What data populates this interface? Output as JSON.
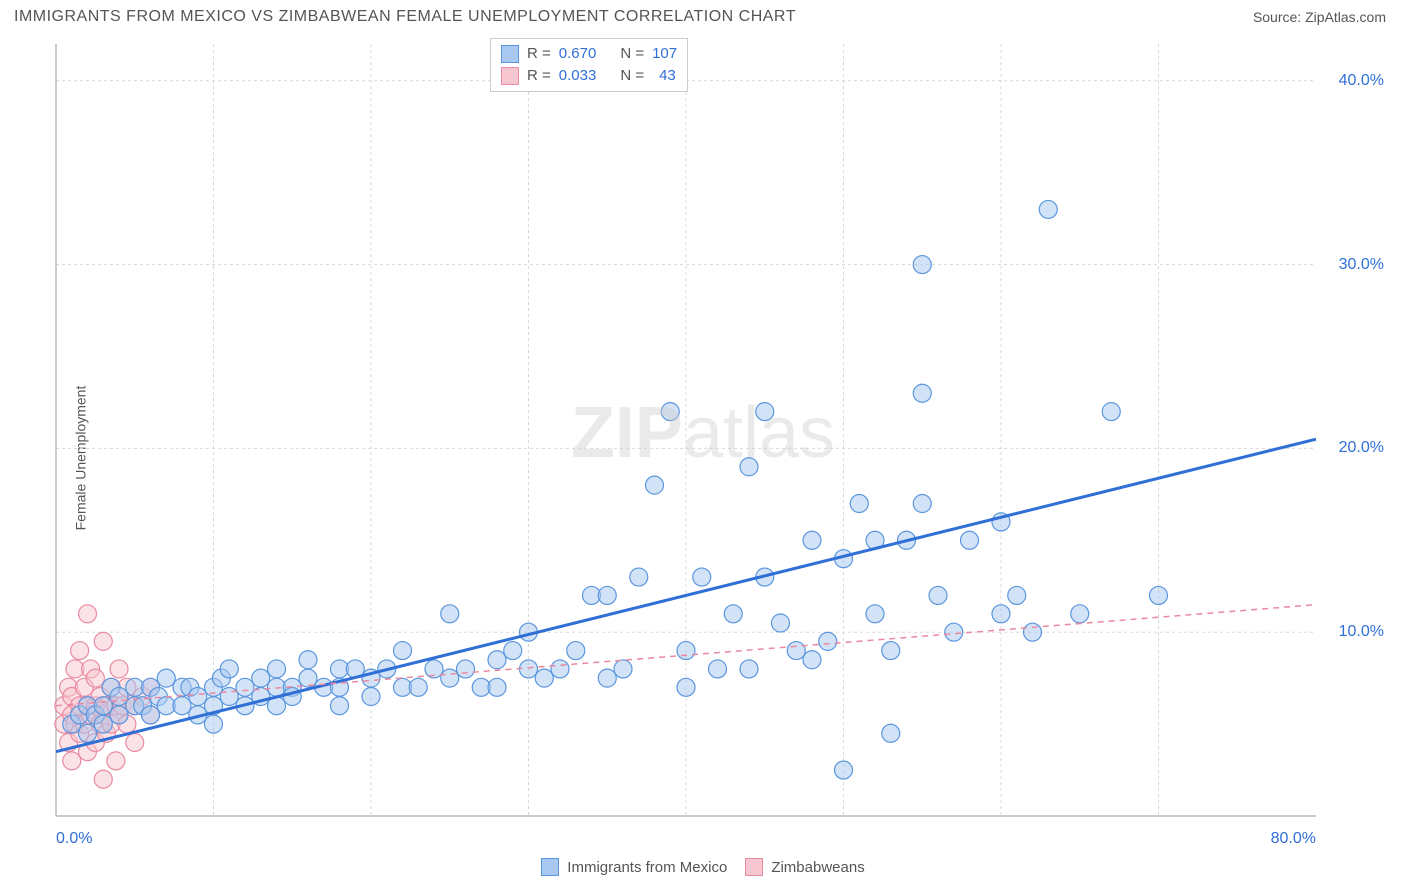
{
  "header": {
    "title": "IMMIGRANTS FROM MEXICO VS ZIMBABWEAN FEMALE UNEMPLOYMENT CORRELATION CHART",
    "source_label": "Source:",
    "source_name": "ZipAtlas.com"
  },
  "watermark": {
    "bold": "ZIP",
    "light": "atlas"
  },
  "chart": {
    "type": "scatter",
    "ylabel": "Female Unemployment",
    "background_color": "#ffffff",
    "grid_color": "#d8d8d8",
    "axis_line_color": "#bcbcbc",
    "tick_label_color": "#2f6fd6",
    "tick_fontsize": 16,
    "label_fontsize": 14,
    "title_fontsize": 16,
    "title_color": "#555555",
    "xlim": [
      0,
      80
    ],
    "ylim": [
      0,
      42
    ],
    "xticks": [
      {
        "pos": 0,
        "label": "0.0%"
      },
      {
        "pos": 80,
        "label": "80.0%"
      }
    ],
    "yticks": [
      {
        "pos": 10,
        "label": "10.0%"
      },
      {
        "pos": 20,
        "label": "20.0%"
      },
      {
        "pos": 30,
        "label": "30.0%"
      },
      {
        "pos": 40,
        "label": "40.0%"
      }
    ],
    "marker_radius": 9,
    "marker_opacity": 0.5,
    "series": [
      {
        "name": "Immigrants from Mexico",
        "fill_color": "#a8c8f0",
        "stroke_color": "#5a96de",
        "trend_color": "#2f6fd6",
        "trend_width": 3,
        "trend_dash": "none",
        "r_value": "0.670",
        "n_value": "107",
        "trend": {
          "x1": 0,
          "y1": 3.5,
          "x2": 80,
          "y2": 20.5
        },
        "points": [
          [
            1,
            5
          ],
          [
            1.5,
            5.5
          ],
          [
            2,
            6
          ],
          [
            2,
            4.5
          ],
          [
            2.5,
            5.5
          ],
          [
            3,
            6
          ],
          [
            3,
            5
          ],
          [
            3.5,
            7
          ],
          [
            4,
            5.5
          ],
          [
            4,
            6.5
          ],
          [
            5,
            6
          ],
          [
            5,
            7
          ],
          [
            5.5,
            6
          ],
          [
            6,
            7
          ],
          [
            6,
            5.5
          ],
          [
            6.5,
            6.5
          ],
          [
            7,
            6
          ],
          [
            7,
            7.5
          ],
          [
            8,
            7
          ],
          [
            8,
            6
          ],
          [
            8.5,
            7
          ],
          [
            9,
            6.5
          ],
          [
            9,
            5.5
          ],
          [
            10,
            7
          ],
          [
            10,
            6
          ],
          [
            10.5,
            7.5
          ],
          [
            11,
            6.5
          ],
          [
            11,
            8
          ],
          [
            12,
            7
          ],
          [
            12,
            6
          ],
          [
            13,
            7.5
          ],
          [
            13,
            6.5
          ],
          [
            14,
            7
          ],
          [
            14,
            8
          ],
          [
            15,
            7
          ],
          [
            15,
            6.5
          ],
          [
            16,
            7.5
          ],
          [
            16,
            8.5
          ],
          [
            17,
            7
          ],
          [
            18,
            8
          ],
          [
            18,
            7
          ],
          [
            19,
            8
          ],
          [
            20,
            7.5
          ],
          [
            20,
            6.5
          ],
          [
            21,
            8
          ],
          [
            22,
            7
          ],
          [
            23,
            7
          ],
          [
            24,
            8
          ],
          [
            25,
            7.5
          ],
          [
            25,
            11
          ],
          [
            26,
            8
          ],
          [
            27,
            7
          ],
          [
            28,
            8.5
          ],
          [
            29,
            9
          ],
          [
            30,
            8
          ],
          [
            31,
            7.5
          ],
          [
            32,
            8
          ],
          [
            33,
            9
          ],
          [
            34,
            12
          ],
          [
            35,
            7.5
          ],
          [
            36,
            8
          ],
          [
            37,
            13
          ],
          [
            38,
            18
          ],
          [
            39,
            22
          ],
          [
            40,
            9
          ],
          [
            41,
            13
          ],
          [
            42,
            8
          ],
          [
            43,
            11
          ],
          [
            44,
            19
          ],
          [
            45,
            13
          ],
          [
            45,
            22
          ],
          [
            46,
            10.5
          ],
          [
            47,
            9
          ],
          [
            48,
            8.5
          ],
          [
            49,
            9.5
          ],
          [
            50,
            14
          ],
          [
            50,
            2.5
          ],
          [
            51,
            17
          ],
          [
            52,
            15
          ],
          [
            53,
            9
          ],
          [
            53,
            4.5
          ],
          [
            54,
            15
          ],
          [
            55,
            23
          ],
          [
            55,
            17
          ],
          [
            55,
            30
          ],
          [
            56,
            12
          ],
          [
            57,
            10
          ],
          [
            58,
            15
          ],
          [
            60,
            16
          ],
          [
            61,
            12
          ],
          [
            62,
            10
          ],
          [
            63,
            33
          ],
          [
            65,
            11
          ],
          [
            67,
            22
          ],
          [
            70,
            12
          ],
          [
            60,
            11
          ],
          [
            48,
            15
          ],
          [
            52,
            11
          ],
          [
            44,
            8
          ],
          [
            40,
            7
          ],
          [
            35,
            12
          ],
          [
            30,
            10
          ],
          [
            28,
            7
          ],
          [
            22,
            9
          ],
          [
            18,
            6
          ],
          [
            14,
            6
          ],
          [
            10,
            5
          ]
        ]
      },
      {
        "name": "Zimbabweans",
        "fill_color": "#f7c6d0",
        "stroke_color": "#e98aa0",
        "trend_color": "#e98aa0",
        "trend_width": 1.5,
        "trend_dash": "6,5",
        "r_value": "0.033",
        "n_value": "43",
        "trend": {
          "x1": 0,
          "y1": 6,
          "x2": 80,
          "y2": 11.5
        },
        "points": [
          [
            0.5,
            5
          ],
          [
            0.5,
            6
          ],
          [
            0.8,
            4
          ],
          [
            0.8,
            7
          ],
          [
            1,
            5.5
          ],
          [
            1,
            6.5
          ],
          [
            1,
            3
          ],
          [
            1.2,
            8
          ],
          [
            1.2,
            5
          ],
          [
            1.5,
            6
          ],
          [
            1.5,
            4.5
          ],
          [
            1.5,
            9
          ],
          [
            1.8,
            5
          ],
          [
            1.8,
            7
          ],
          [
            2,
            6
          ],
          [
            2,
            3.5
          ],
          [
            2,
            11
          ],
          [
            2.2,
            5.5
          ],
          [
            2.2,
            8
          ],
          [
            2.5,
            6
          ],
          [
            2.5,
            4
          ],
          [
            2.5,
            7.5
          ],
          [
            2.8,
            5
          ],
          [
            2.8,
            6.5
          ],
          [
            3,
            5.5
          ],
          [
            3,
            2
          ],
          [
            3,
            9.5
          ],
          [
            3.2,
            6
          ],
          [
            3.2,
            4.5
          ],
          [
            3.5,
            7
          ],
          [
            3.5,
            5
          ],
          [
            3.8,
            6
          ],
          [
            3.8,
            3
          ],
          [
            4,
            5.5
          ],
          [
            4,
            8
          ],
          [
            4.2,
            6
          ],
          [
            4.5,
            5
          ],
          [
            4.5,
            7
          ],
          [
            5,
            6
          ],
          [
            5,
            4
          ],
          [
            5.5,
            6.5
          ],
          [
            6,
            5.5
          ],
          [
            6,
            7
          ]
        ]
      }
    ]
  },
  "legend_top": {
    "r_label": "R =",
    "n_label": "N ="
  },
  "legend_bottom": {
    "items": [
      {
        "label": "Immigrants from Mexico",
        "fill": "#a8c8f0",
        "stroke": "#5a96de"
      },
      {
        "label": "Zimbabweans",
        "fill": "#f7c6d0",
        "stroke": "#e98aa0"
      }
    ]
  }
}
